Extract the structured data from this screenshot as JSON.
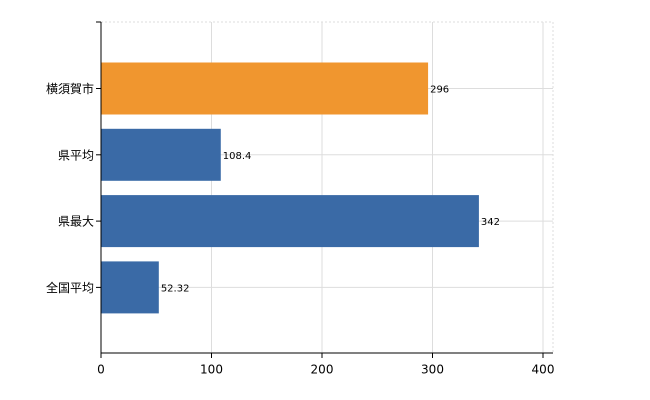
{
  "chart_data": {
    "type": "bar",
    "orientation": "horizontal",
    "categories": [
      "横須賀市",
      "県平均",
      "県最大",
      "全国平均"
    ],
    "values": [
      296,
      108.4,
      342,
      52.32
    ],
    "colors": [
      "#f0962f",
      "#3a6aa6",
      "#3a6aa6",
      "#3a6aa6"
    ],
    "xlim": [
      0,
      400
    ],
    "xticks": [
      0,
      100,
      200,
      300,
      400
    ],
    "grid": true
  }
}
